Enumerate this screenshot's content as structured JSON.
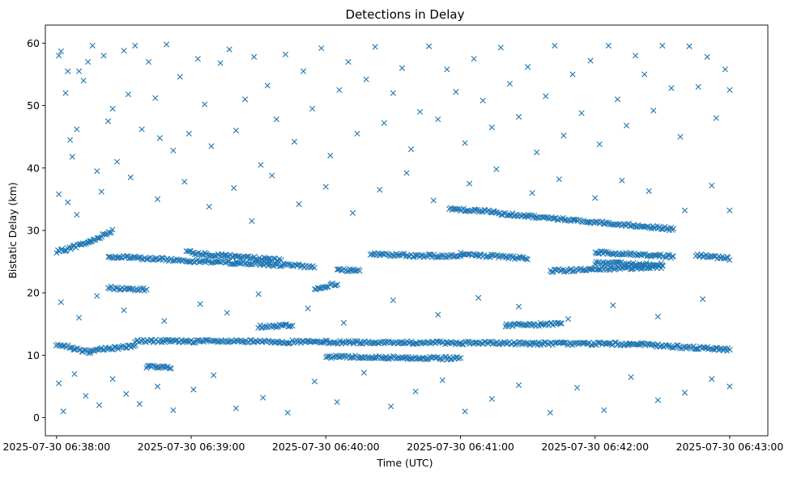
{
  "chart_data": {
    "type": "scatter",
    "title": "Detections in Delay",
    "xlabel": "Time (UTC)",
    "ylabel": "Bistatic Delay (km)",
    "x_ticks": [
      "2025-07-30 06:38:00",
      "2025-07-30 06:39:00",
      "2025-07-30 06:40:00",
      "2025-07-30 06:41:00",
      "2025-07-30 06:42:00",
      "2025-07-30 06:43:00"
    ],
    "y_ticks": [
      0,
      10,
      20,
      30,
      40,
      50,
      60
    ],
    "xlim": [
      "2025-07-30 06:37:55",
      "2025-07-30 06:43:17"
    ],
    "ylim": [
      -2.9,
      62.9
    ],
    "grid": false,
    "marker": "x",
    "color": "#1f77b4",
    "series": [
      {
        "tracks": [
          {
            "t": [
              "2025-07-30 06:38:00",
              "2025-07-30 06:38:15"
            ],
            "y": [
              26.5,
              28.2
            ]
          },
          {
            "t": [
              "2025-07-30 06:38:15",
              "2025-07-30 06:38:25"
            ],
            "y": [
              28.2,
              30.0
            ]
          },
          {
            "t": [
              "2025-07-30 06:38:23",
              "2025-07-30 06:39:55"
            ],
            "y": [
              25.8,
              24.2
            ]
          },
          {
            "t": [
              "2025-07-30 06:38:58",
              "2025-07-30 06:39:40"
            ],
            "y": [
              26.5,
              25.2
            ]
          },
          {
            "t": [
              "2025-07-30 06:38:23",
              "2025-07-30 06:38:40"
            ],
            "y": [
              20.8,
              20.5
            ]
          },
          {
            "t": [
              "2025-07-30 06:38:40",
              "2025-07-30 06:38:51"
            ],
            "y": [
              8.2,
              8.0
            ]
          },
          {
            "t": [
              "2025-07-30 06:38:00",
              "2025-07-30 06:38:15"
            ],
            "y": [
              11.8,
              10.5
            ]
          },
          {
            "t": [
              "2025-07-30 06:38:15",
              "2025-07-30 06:38:35"
            ],
            "y": [
              10.8,
              11.5
            ]
          },
          {
            "t": [
              "2025-07-30 06:38:35",
              "2025-07-30 06:42:15"
            ],
            "y": [
              12.3,
              11.8
            ]
          },
          {
            "t": [
              "2025-07-30 06:42:15",
              "2025-07-30 06:43:00"
            ],
            "y": [
              11.8,
              10.9
            ]
          },
          {
            "t": [
              "2025-07-30 06:39:55",
              "2025-07-30 06:40:05"
            ],
            "y": [
              20.5,
              21.5
            ]
          },
          {
            "t": [
              "2025-07-30 06:39:30",
              "2025-07-30 06:39:45"
            ],
            "y": [
              14.6,
              14.8
            ]
          },
          {
            "t": [
              "2025-07-30 06:40:05",
              "2025-07-30 06:40:15"
            ],
            "y": [
              23.8,
              23.5
            ]
          },
          {
            "t": [
              "2025-07-30 06:40:20",
              "2025-07-30 06:41:00"
            ],
            "y": [
              26.2,
              25.8
            ]
          },
          {
            "t": [
              "2025-07-30 06:40:55",
              "2025-07-30 06:41:15"
            ],
            "y": [
              33.5,
              33.0
            ]
          },
          {
            "t": [
              "2025-07-30 06:41:15",
              "2025-07-30 06:42:35"
            ],
            "y": [
              32.8,
              30.2
            ]
          },
          {
            "t": [
              "2025-07-30 06:41:00",
              "2025-07-30 06:41:30"
            ],
            "y": [
              26.2,
              25.5
            ]
          },
          {
            "t": [
              "2025-07-30 06:42:00",
              "2025-07-30 06:42:35"
            ],
            "y": [
              26.5,
              25.8
            ]
          },
          {
            "t": [
              "2025-07-30 06:41:40",
              "2025-07-30 06:42:30"
            ],
            "y": [
              23.5,
              24.2
            ]
          },
          {
            "t": [
              "2025-07-30 06:42:00",
              "2025-07-30 06:42:30"
            ],
            "y": [
              24.8,
              24.5
            ]
          },
          {
            "t": [
              "2025-07-30 06:41:20",
              "2025-07-30 06:41:45"
            ],
            "y": [
              14.8,
              15.0
            ]
          },
          {
            "t": [
              "2025-07-30 06:42:45",
              "2025-07-30 06:43:00"
            ],
            "y": [
              26.0,
              25.5
            ]
          },
          {
            "t": [
              "2025-07-30 06:40:00",
              "2025-07-30 06:41:00"
            ],
            "y": [
              9.8,
              9.5
            ]
          }
        ],
        "scattered_points": [
          [
            "2025-07-30 06:38:01",
            58.0
          ],
          [
            "2025-07-30 06:38:02",
            58.7
          ],
          [
            "2025-07-30 06:38:04",
            52.0
          ],
          [
            "2025-07-30 06:38:05",
            55.5
          ],
          [
            "2025-07-30 06:38:06",
            44.5
          ],
          [
            "2025-07-30 06:38:07",
            41.8
          ],
          [
            "2025-07-30 06:38:09",
            46.2
          ],
          [
            "2025-07-30 06:38:10",
            55.5
          ],
          [
            "2025-07-30 06:38:12",
            54.0
          ],
          [
            "2025-07-30 06:38:14",
            57.0
          ],
          [
            "2025-07-30 06:38:16",
            59.6
          ],
          [
            "2025-07-30 06:38:18",
            39.5
          ],
          [
            "2025-07-30 06:38:21",
            58.0
          ],
          [
            "2025-07-30 06:38:23",
            47.5
          ],
          [
            "2025-07-30 06:38:25",
            49.5
          ],
          [
            "2025-07-30 06:38:27",
            41.0
          ],
          [
            "2025-07-30 06:38:30",
            58.8
          ],
          [
            "2025-07-30 06:38:32",
            51.8
          ],
          [
            "2025-07-30 06:38:35",
            59.6
          ],
          [
            "2025-07-30 06:38:38",
            46.2
          ],
          [
            "2025-07-30 06:38:41",
            57.0
          ],
          [
            "2025-07-30 06:38:44",
            51.2
          ],
          [
            "2025-07-30 06:38:46",
            44.8
          ],
          [
            "2025-07-30 06:38:49",
            59.8
          ],
          [
            "2025-07-30 06:38:52",
            42.8
          ],
          [
            "2025-07-30 06:38:55",
            54.6
          ],
          [
            "2025-07-30 06:38:59",
            45.5
          ],
          [
            "2025-07-30 06:39:03",
            57.5
          ],
          [
            "2025-07-30 06:39:06",
            50.2
          ],
          [
            "2025-07-30 06:39:09",
            43.5
          ],
          [
            "2025-07-30 06:39:13",
            56.8
          ],
          [
            "2025-07-30 06:39:17",
            59.0
          ],
          [
            "2025-07-30 06:39:20",
            46.0
          ],
          [
            "2025-07-30 06:39:24",
            51.0
          ],
          [
            "2025-07-30 06:39:28",
            57.8
          ],
          [
            "2025-07-30 06:39:31",
            40.5
          ],
          [
            "2025-07-30 06:39:34",
            53.2
          ],
          [
            "2025-07-30 06:39:38",
            47.8
          ],
          [
            "2025-07-30 06:39:42",
            58.2
          ],
          [
            "2025-07-30 06:39:46",
            44.2
          ],
          [
            "2025-07-30 06:39:50",
            55.5
          ],
          [
            "2025-07-30 06:39:54",
            49.5
          ],
          [
            "2025-07-30 06:39:58",
            59.2
          ],
          [
            "2025-07-30 06:40:02",
            42.0
          ],
          [
            "2025-07-30 06:40:06",
            52.5
          ],
          [
            "2025-07-30 06:40:10",
            57.0
          ],
          [
            "2025-07-30 06:40:14",
            45.5
          ],
          [
            "2025-07-30 06:40:18",
            54.2
          ],
          [
            "2025-07-30 06:40:22",
            59.4
          ],
          [
            "2025-07-30 06:40:26",
            47.2
          ],
          [
            "2025-07-30 06:40:30",
            52.0
          ],
          [
            "2025-07-30 06:40:34",
            56.0
          ],
          [
            "2025-07-30 06:40:38",
            43.0
          ],
          [
            "2025-07-30 06:40:42",
            49.0
          ],
          [
            "2025-07-30 06:40:46",
            59.5
          ],
          [
            "2025-07-30 06:40:50",
            47.8
          ],
          [
            "2025-07-30 06:40:54",
            55.8
          ],
          [
            "2025-07-30 06:40:58",
            52.2
          ],
          [
            "2025-07-30 06:41:02",
            44.0
          ],
          [
            "2025-07-30 06:41:06",
            57.5
          ],
          [
            "2025-07-30 06:41:10",
            50.8
          ],
          [
            "2025-07-30 06:41:14",
            46.5
          ],
          [
            "2025-07-30 06:41:18",
            59.3
          ],
          [
            "2025-07-30 06:41:22",
            53.5
          ],
          [
            "2025-07-30 06:41:26",
            48.2
          ],
          [
            "2025-07-30 06:41:30",
            56.2
          ],
          [
            "2025-07-30 06:41:34",
            42.5
          ],
          [
            "2025-07-30 06:41:38",
            51.5
          ],
          [
            "2025-07-30 06:41:42",
            59.6
          ],
          [
            "2025-07-30 06:41:46",
            45.2
          ],
          [
            "2025-07-30 06:41:50",
            55.0
          ],
          [
            "2025-07-30 06:41:54",
            48.8
          ],
          [
            "2025-07-30 06:41:58",
            57.2
          ],
          [
            "2025-07-30 06:42:02",
            43.8
          ],
          [
            "2025-07-30 06:42:06",
            59.6
          ],
          [
            "2025-07-30 06:42:10",
            51.0
          ],
          [
            "2025-07-30 06:42:14",
            46.8
          ],
          [
            "2025-07-30 06:42:18",
            58.0
          ],
          [
            "2025-07-30 06:42:22",
            55.0
          ],
          [
            "2025-07-30 06:42:26",
            49.2
          ],
          [
            "2025-07-30 06:42:30",
            59.6
          ],
          [
            "2025-07-30 06:42:34",
            52.8
          ],
          [
            "2025-07-30 06:42:38",
            45.0
          ],
          [
            "2025-07-30 06:42:42",
            59.5
          ],
          [
            "2025-07-30 06:42:46",
            53.0
          ],
          [
            "2025-07-30 06:42:50",
            57.8
          ],
          [
            "2025-07-30 06:42:54",
            48.0
          ],
          [
            "2025-07-30 06:42:58",
            55.8
          ],
          [
            "2025-07-30 06:43:00",
            52.5
          ],
          [
            "2025-07-30 06:38:01",
            35.8
          ],
          [
            "2025-07-30 06:38:05",
            34.5
          ],
          [
            "2025-07-30 06:38:09",
            32.5
          ],
          [
            "2025-07-30 06:38:20",
            36.2
          ],
          [
            "2025-07-30 06:38:33",
            38.5
          ],
          [
            "2025-07-30 06:38:45",
            35.0
          ],
          [
            "2025-07-30 06:38:57",
            37.8
          ],
          [
            "2025-07-30 06:39:08",
            33.8
          ],
          [
            "2025-07-30 06:39:19",
            36.8
          ],
          [
            "2025-07-30 06:39:27",
            31.5
          ],
          [
            "2025-07-30 06:39:36",
            38.8
          ],
          [
            "2025-07-30 06:39:48",
            34.2
          ],
          [
            "2025-07-30 06:40:00",
            37.0
          ],
          [
            "2025-07-30 06:40:12",
            32.8
          ],
          [
            "2025-07-30 06:40:24",
            36.5
          ],
          [
            "2025-07-30 06:40:36",
            39.2
          ],
          [
            "2025-07-30 06:40:48",
            34.8
          ],
          [
            "2025-07-30 06:41:04",
            37.5
          ],
          [
            "2025-07-30 06:41:16",
            39.8
          ],
          [
            "2025-07-30 06:41:32",
            36.0
          ],
          [
            "2025-07-30 06:41:44",
            38.2
          ],
          [
            "2025-07-30 06:42:00",
            35.2
          ],
          [
            "2025-07-30 06:42:12",
            38.0
          ],
          [
            "2025-07-30 06:42:24",
            36.3
          ],
          [
            "2025-07-30 06:42:40",
            33.2
          ],
          [
            "2025-07-30 06:42:52",
            37.2
          ],
          [
            "2025-07-30 06:43:00",
            33.2
          ],
          [
            "2025-07-30 06:38:02",
            18.5
          ],
          [
            "2025-07-30 06:38:10",
            16.0
          ],
          [
            "2025-07-30 06:38:18",
            19.5
          ],
          [
            "2025-07-30 06:38:30",
            17.2
          ],
          [
            "2025-07-30 06:38:48",
            15.5
          ],
          [
            "2025-07-30 06:39:04",
            18.2
          ],
          [
            "2025-07-30 06:39:16",
            16.8
          ],
          [
            "2025-07-30 06:39:30",
            19.8
          ],
          [
            "2025-07-30 06:39:52",
            17.5
          ],
          [
            "2025-07-30 06:40:08",
            15.2
          ],
          [
            "2025-07-30 06:40:30",
            18.8
          ],
          [
            "2025-07-30 06:40:50",
            16.5
          ],
          [
            "2025-07-30 06:41:08",
            19.2
          ],
          [
            "2025-07-30 06:41:26",
            17.8
          ],
          [
            "2025-07-30 06:41:48",
            15.8
          ],
          [
            "2025-07-30 06:42:08",
            18.0
          ],
          [
            "2025-07-30 06:42:28",
            16.2
          ],
          [
            "2025-07-30 06:42:48",
            19.0
          ],
          [
            "2025-07-30 06:38:01",
            5.5
          ],
          [
            "2025-07-30 06:38:03",
            1.0
          ],
          [
            "2025-07-30 06:38:08",
            7.0
          ],
          [
            "2025-07-30 06:38:13",
            3.5
          ],
          [
            "2025-07-30 06:38:19",
            2.0
          ],
          [
            "2025-07-30 06:38:25",
            6.2
          ],
          [
            "2025-07-30 06:38:31",
            3.8
          ],
          [
            "2025-07-30 06:38:37",
            2.2
          ],
          [
            "2025-07-30 06:38:45",
            5.0
          ],
          [
            "2025-07-30 06:38:52",
            1.2
          ],
          [
            "2025-07-30 06:39:01",
            4.5
          ],
          [
            "2025-07-30 06:39:10",
            6.8
          ],
          [
            "2025-07-30 06:39:20",
            1.5
          ],
          [
            "2025-07-30 06:39:32",
            3.2
          ],
          [
            "2025-07-30 06:39:43",
            0.8
          ],
          [
            "2025-07-30 06:39:55",
            5.8
          ],
          [
            "2025-07-30 06:40:05",
            2.5
          ],
          [
            "2025-07-30 06:40:17",
            7.2
          ],
          [
            "2025-07-30 06:40:29",
            1.8
          ],
          [
            "2025-07-30 06:40:40",
            4.2
          ],
          [
            "2025-07-30 06:40:52",
            6.0
          ],
          [
            "2025-07-30 06:41:02",
            1.0
          ],
          [
            "2025-07-30 06:41:14",
            3.0
          ],
          [
            "2025-07-30 06:41:26",
            5.2
          ],
          [
            "2025-07-30 06:41:40",
            0.8
          ],
          [
            "2025-07-30 06:41:52",
            4.8
          ],
          [
            "2025-07-30 06:42:04",
            1.2
          ],
          [
            "2025-07-30 06:42:16",
            6.5
          ],
          [
            "2025-07-30 06:42:28",
            2.8
          ],
          [
            "2025-07-30 06:42:40",
            4.0
          ],
          [
            "2025-07-30 06:42:52",
            6.2
          ],
          [
            "2025-07-30 06:43:00",
            5.0
          ]
        ]
      }
    ]
  }
}
